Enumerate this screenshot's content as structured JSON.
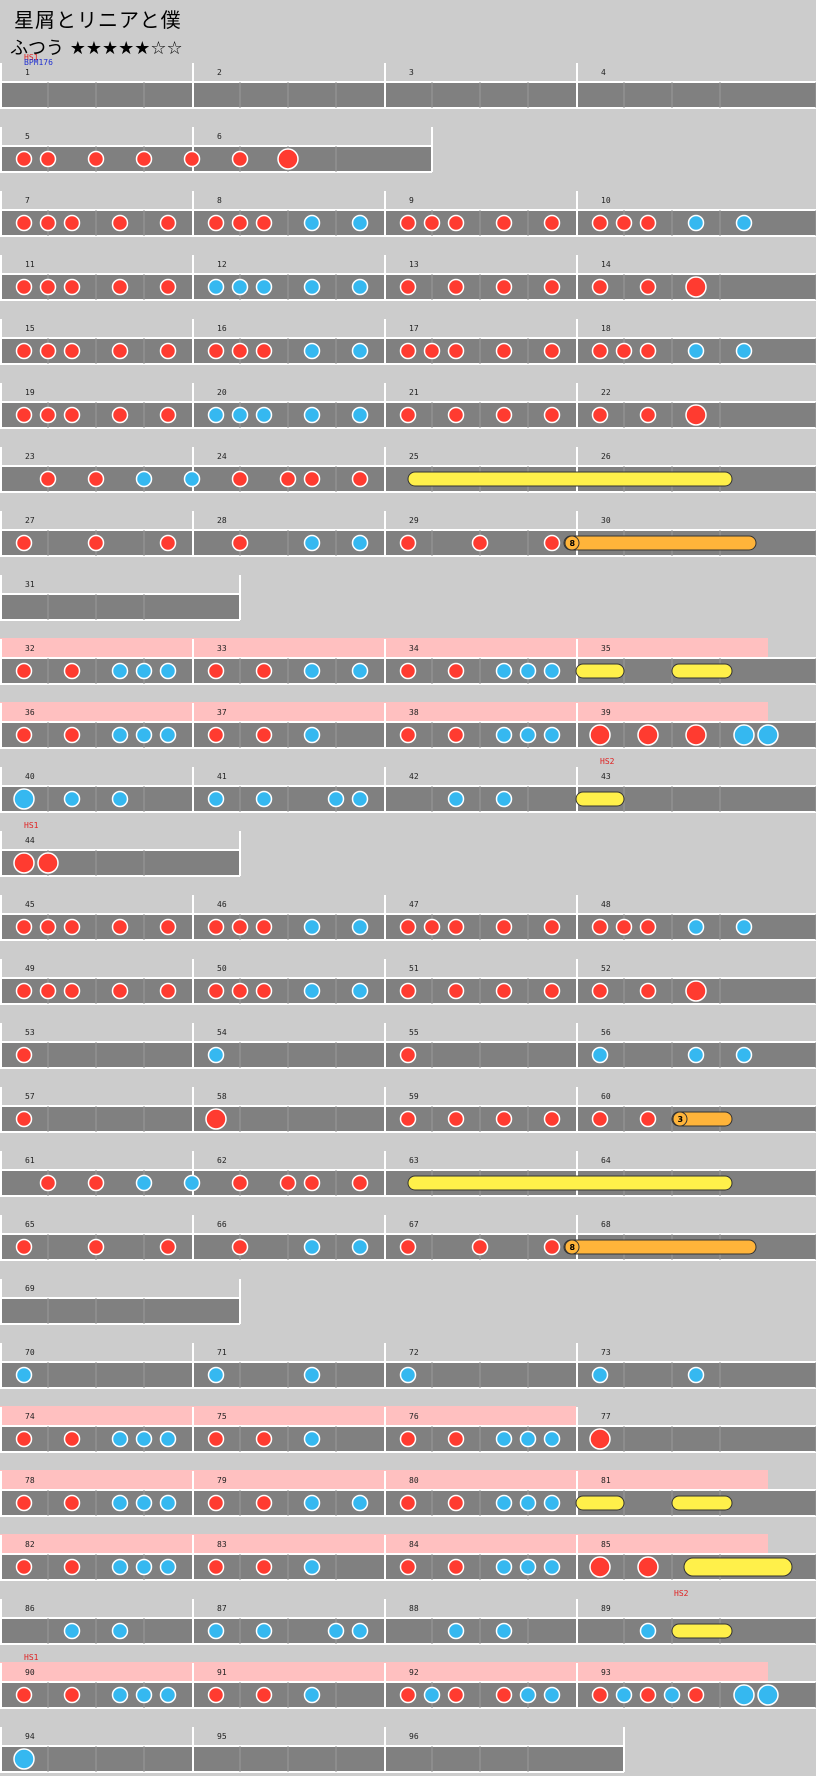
{
  "song": {
    "title": "星屑とリニアと僕",
    "difficulty_label": "ふつう",
    "stars": "★★★★★☆☆"
  },
  "colors": {
    "background": "#cccccc",
    "lane": "#808080",
    "lane_border": "#ffffff",
    "gogo": "#ffc0c0",
    "don": "#ff3b30",
    "ka": "#35b8f0",
    "drumroll": "#fff04a",
    "balloon": "#ffb43a",
    "hs": "#e02020",
    "bpm": "#2030d0"
  },
  "rows": [
    {
      "measures": [
        1,
        2,
        3,
        4
      ],
      "events": [
        {
          "m": 1,
          "text": "HS1",
          "type": "hs"
        },
        {
          "m": 1,
          "text": "BPM176",
          "type": "bpm"
        }
      ],
      "notes": []
    },
    {
      "measures": [
        5,
        6
      ],
      "notes": [
        [
          "d",
          0
        ],
        [
          "d",
          1
        ],
        [
          "d",
          3
        ],
        [
          "d",
          5
        ],
        [
          "d",
          7
        ],
        [
          "d",
          9
        ],
        [
          "D",
          11
        ]
      ]
    },
    {
      "measures": [
        7,
        8,
        9,
        10
      ],
      "notes": [
        [
          "d",
          0
        ],
        [
          "d",
          1
        ],
        [
          "d",
          2
        ],
        [
          "d",
          4
        ],
        [
          "d",
          6
        ],
        [
          "d",
          8
        ],
        [
          "d",
          9
        ],
        [
          "d",
          10
        ],
        [
          "k",
          12
        ],
        [
          "k",
          14
        ],
        [
          "d",
          16
        ],
        [
          "d",
          17
        ],
        [
          "d",
          18
        ],
        [
          "d",
          20
        ],
        [
          "d",
          22
        ],
        [
          "d",
          24
        ],
        [
          "d",
          25
        ],
        [
          "d",
          26
        ],
        [
          "k",
          28
        ],
        [
          "k",
          30
        ]
      ]
    },
    {
      "measures": [
        11,
        12,
        13,
        14
      ],
      "notes": [
        [
          "d",
          0
        ],
        [
          "d",
          1
        ],
        [
          "d",
          2
        ],
        [
          "d",
          4
        ],
        [
          "d",
          6
        ],
        [
          "k",
          8
        ],
        [
          "k",
          9
        ],
        [
          "k",
          10
        ],
        [
          "k",
          12
        ],
        [
          "k",
          14
        ],
        [
          "d",
          16
        ],
        [
          "d",
          18
        ],
        [
          "d",
          20
        ],
        [
          "d",
          22
        ],
        [
          "d",
          24
        ],
        [
          "d",
          26
        ],
        [
          "D",
          28
        ]
      ]
    },
    {
      "measures": [
        15,
        16,
        17,
        18
      ],
      "notes": [
        [
          "d",
          0
        ],
        [
          "d",
          1
        ],
        [
          "d",
          2
        ],
        [
          "d",
          4
        ],
        [
          "d",
          6
        ],
        [
          "d",
          8
        ],
        [
          "d",
          9
        ],
        [
          "d",
          10
        ],
        [
          "k",
          12
        ],
        [
          "k",
          14
        ],
        [
          "d",
          16
        ],
        [
          "d",
          17
        ],
        [
          "d",
          18
        ],
        [
          "d",
          20
        ],
        [
          "d",
          22
        ],
        [
          "d",
          24
        ],
        [
          "d",
          25
        ],
        [
          "d",
          26
        ],
        [
          "k",
          28
        ],
        [
          "k",
          30
        ]
      ]
    },
    {
      "measures": [
        19,
        20,
        21,
        22
      ],
      "notes": [
        [
          "d",
          0
        ],
        [
          "d",
          1
        ],
        [
          "d",
          2
        ],
        [
          "d",
          4
        ],
        [
          "d",
          6
        ],
        [
          "k",
          8
        ],
        [
          "k",
          9
        ],
        [
          "k",
          10
        ],
        [
          "k",
          12
        ],
        [
          "k",
          14
        ],
        [
          "d",
          16
        ],
        [
          "d",
          18
        ],
        [
          "d",
          20
        ],
        [
          "d",
          22
        ],
        [
          "d",
          24
        ],
        [
          "d",
          26
        ],
        [
          "D",
          28
        ]
      ]
    },
    {
      "measures": [
        23,
        24,
        25,
        26
      ],
      "notes": [
        [
          "d",
          1
        ],
        [
          "d",
          3
        ],
        [
          "k",
          5
        ],
        [
          "k",
          7
        ],
        [
          "d",
          9
        ],
        [
          "d",
          11
        ],
        [
          "d",
          12
        ],
        [
          "d",
          14
        ]
      ],
      "rolls": [
        {
          "type": "roll",
          "start": 17,
          "end": 30.5
        }
      ]
    },
    {
      "measures": [
        27,
        28,
        29,
        30
      ],
      "notes": [
        [
          "d",
          0
        ],
        [
          "d",
          3
        ],
        [
          "d",
          6
        ],
        [
          "d",
          9
        ],
        [
          "k",
          12
        ],
        [
          "k",
          14
        ],
        [
          "d",
          16
        ],
        [
          "d",
          19
        ],
        [
          "d",
          22
        ]
      ],
      "rolls": [
        {
          "type": "balloon",
          "start": 23.5,
          "end": 31.5,
          "count": "8"
        }
      ]
    },
    {
      "measures": [
        31
      ],
      "notes": []
    },
    {
      "measures": [
        32,
        33,
        34,
        35
      ],
      "gogo": [
        0,
        32
      ],
      "notes": [
        [
          "d",
          0
        ],
        [
          "d",
          2
        ],
        [
          "k",
          4
        ],
        [
          "k",
          5
        ],
        [
          "k",
          6
        ],
        [
          "d",
          8
        ],
        [
          "d",
          10
        ],
        [
          "k",
          12
        ],
        [
          "k",
          14
        ],
        [
          "d",
          16
        ],
        [
          "d",
          18
        ],
        [
          "k",
          20
        ],
        [
          "k",
          21
        ],
        [
          "k",
          22
        ]
      ],
      "rolls": [
        {
          "type": "roll",
          "start": 24,
          "end": 26
        },
        {
          "type": "roll",
          "start": 28,
          "end": 30.5
        }
      ]
    },
    {
      "measures": [
        36,
        37,
        38,
        39
      ],
      "gogo": [
        0,
        32
      ],
      "notes": [
        [
          "d",
          0
        ],
        [
          "d",
          2
        ],
        [
          "k",
          4
        ],
        [
          "k",
          5
        ],
        [
          "k",
          6
        ],
        [
          "d",
          8
        ],
        [
          "d",
          10
        ],
        [
          "k",
          12
        ],
        [
          "d",
          16
        ],
        [
          "d",
          18
        ],
        [
          "k",
          20
        ],
        [
          "k",
          21
        ],
        [
          "k",
          22
        ],
        [
          "D",
          24
        ],
        [
          "D",
          26
        ],
        [
          "D",
          28
        ],
        [
          "K",
          30
        ],
        [
          "K",
          31
        ]
      ]
    },
    {
      "measures": [
        40,
        41,
        42,
        43
      ],
      "events": [
        {
          "m": 43,
          "text": "HS2",
          "type": "hs"
        }
      ],
      "notes": [
        [
          "K",
          0
        ],
        [
          "k",
          2
        ],
        [
          "k",
          4
        ],
        [
          "k",
          8
        ],
        [
          "k",
          10
        ],
        [
          "k",
          13
        ],
        [
          "k",
          14
        ],
        [
          "k",
          18
        ],
        [
          "k",
          20
        ]
      ],
      "rolls": [
        {
          "type": "roll",
          "start": 24,
          "end": 26
        }
      ]
    },
    {
      "measures": [
        44
      ],
      "events": [
        {
          "m": 44,
          "text": "HS1",
          "type": "hs"
        }
      ],
      "notes": [
        [
          "D",
          0
        ],
        [
          "D",
          1
        ]
      ]
    },
    {
      "measures": [
        45,
        46,
        47,
        48
      ],
      "notes": [
        [
          "d",
          0
        ],
        [
          "d",
          1
        ],
        [
          "d",
          2
        ],
        [
          "d",
          4
        ],
        [
          "d",
          6
        ],
        [
          "d",
          8
        ],
        [
          "d",
          9
        ],
        [
          "d",
          10
        ],
        [
          "k",
          12
        ],
        [
          "k",
          14
        ],
        [
          "d",
          16
        ],
        [
          "d",
          17
        ],
        [
          "d",
          18
        ],
        [
          "d",
          20
        ],
        [
          "d",
          22
        ],
        [
          "d",
          24
        ],
        [
          "d",
          25
        ],
        [
          "d",
          26
        ],
        [
          "k",
          28
        ],
        [
          "k",
          30
        ]
      ]
    },
    {
      "measures": [
        49,
        50,
        51,
        52
      ],
      "notes": [
        [
          "d",
          0
        ],
        [
          "d",
          1
        ],
        [
          "d",
          2
        ],
        [
          "d",
          4
        ],
        [
          "d",
          6
        ],
        [
          "d",
          8
        ],
        [
          "d",
          9
        ],
        [
          "d",
          10
        ],
        [
          "k",
          12
        ],
        [
          "k",
          14
        ],
        [
          "d",
          16
        ],
        [
          "d",
          18
        ],
        [
          "d",
          20
        ],
        [
          "d",
          22
        ],
        [
          "d",
          24
        ],
        [
          "d",
          26
        ],
        [
          "D",
          28
        ]
      ]
    },
    {
      "measures": [
        53,
        54,
        55,
        56
      ],
      "notes": [
        [
          "d",
          0
        ],
        [
          "k",
          8
        ],
        [
          "d",
          16
        ],
        [
          "k",
          24
        ],
        [
          "k",
          28
        ],
        [
          "k",
          30
        ]
      ]
    },
    {
      "measures": [
        57,
        58,
        59,
        60
      ],
      "notes": [
        [
          "d",
          0
        ],
        [
          "D",
          8
        ],
        [
          "d",
          16
        ],
        [
          "d",
          18
        ],
        [
          "d",
          20
        ],
        [
          "d",
          22
        ],
        [
          "d",
          24
        ],
        [
          "d",
          26
        ]
      ],
      "rolls": [
        {
          "type": "balloon",
          "start": 28,
          "end": 30.5,
          "count": "3"
        }
      ]
    },
    {
      "measures": [
        61,
        62,
        63,
        64
      ],
      "notes": [
        [
          "d",
          1
        ],
        [
          "d",
          3
        ],
        [
          "k",
          5
        ],
        [
          "k",
          7
        ],
        [
          "d",
          9
        ],
        [
          "d",
          11
        ],
        [
          "d",
          12
        ],
        [
          "d",
          14
        ]
      ],
      "rolls": [
        {
          "type": "roll",
          "start": 17,
          "end": 30.5
        }
      ]
    },
    {
      "measures": [
        65,
        66,
        67,
        68
      ],
      "notes": [
        [
          "d",
          0
        ],
        [
          "d",
          3
        ],
        [
          "d",
          6
        ],
        [
          "d",
          9
        ],
        [
          "k",
          12
        ],
        [
          "k",
          14
        ],
        [
          "d",
          16
        ],
        [
          "d",
          19
        ],
        [
          "d",
          22
        ]
      ],
      "rolls": [
        {
          "type": "balloon",
          "start": 23.5,
          "end": 31.5,
          "count": "8"
        }
      ]
    },
    {
      "measures": [
        69
      ],
      "notes": []
    },
    {
      "measures": [
        70,
        71,
        72,
        73
      ],
      "notes": [
        [
          "k",
          0
        ],
        [
          "k",
          8
        ],
        [
          "k",
          12
        ],
        [
          "k",
          16
        ],
        [
          "k",
          24
        ],
        [
          "k",
          28
        ]
      ]
    },
    {
      "measures": [
        74,
        75,
        76,
        77
      ],
      "gogo": [
        0,
        24
      ],
      "notes": [
        [
          "d",
          0
        ],
        [
          "d",
          2
        ],
        [
          "k",
          4
        ],
        [
          "k",
          5
        ],
        [
          "k",
          6
        ],
        [
          "d",
          8
        ],
        [
          "d",
          10
        ],
        [
          "k",
          12
        ],
        [
          "d",
          16
        ],
        [
          "d",
          18
        ],
        [
          "k",
          20
        ],
        [
          "k",
          21
        ],
        [
          "k",
          22
        ],
        [
          "D",
          24
        ]
      ]
    },
    {
      "measures": [
        78,
        79,
        80,
        81
      ],
      "gogo": [
        0,
        32
      ],
      "notes": [
        [
          "d",
          0
        ],
        [
          "d",
          2
        ],
        [
          "k",
          4
        ],
        [
          "k",
          5
        ],
        [
          "k",
          6
        ],
        [
          "d",
          8
        ],
        [
          "d",
          10
        ],
        [
          "k",
          12
        ],
        [
          "k",
          14
        ],
        [
          "d",
          16
        ],
        [
          "d",
          18
        ],
        [
          "k",
          20
        ],
        [
          "k",
          21
        ],
        [
          "k",
          22
        ]
      ],
      "rolls": [
        {
          "type": "roll",
          "start": 24,
          "end": 26
        },
        {
          "type": "roll",
          "start": 28,
          "end": 30.5
        }
      ]
    },
    {
      "measures": [
        82,
        83,
        84,
        85
      ],
      "gogo": [
        0,
        32
      ],
      "notes": [
        [
          "d",
          0
        ],
        [
          "d",
          2
        ],
        [
          "k",
          4
        ],
        [
          "k",
          5
        ],
        [
          "k",
          6
        ],
        [
          "d",
          8
        ],
        [
          "d",
          10
        ],
        [
          "k",
          12
        ],
        [
          "d",
          16
        ],
        [
          "d",
          18
        ],
        [
          "k",
          20
        ],
        [
          "k",
          21
        ],
        [
          "k",
          22
        ],
        [
          "D",
          24
        ],
        [
          "D",
          26
        ]
      ],
      "rolls": [
        {
          "type": "bigroll",
          "start": 28.5,
          "end": 33
        }
      ]
    },
    {
      "measures": [
        86,
        87,
        88,
        89
      ],
      "events": [
        {
          "m": 89,
          "text": "HS2",
          "type": "hs",
          "beat": 28
        }
      ],
      "notes": [
        [
          "k",
          2
        ],
        [
          "k",
          4
        ],
        [
          "k",
          8
        ],
        [
          "k",
          10
        ],
        [
          "k",
          13
        ],
        [
          "k",
          14
        ],
        [
          "k",
          18
        ],
        [
          "k",
          20
        ],
        [
          "k",
          26
        ]
      ],
      "rolls": [
        {
          "type": "roll",
          "start": 28,
          "end": 30.5
        }
      ]
    },
    {
      "measures": [
        90,
        91,
        92,
        93
      ],
      "gogo": [
        0,
        32
      ],
      "events": [
        {
          "m": 90,
          "text": "HS1",
          "type": "hs"
        }
      ],
      "notes": [
        [
          "d",
          0
        ],
        [
          "d",
          2
        ],
        [
          "k",
          4
        ],
        [
          "k",
          5
        ],
        [
          "k",
          6
        ],
        [
          "d",
          8
        ],
        [
          "d",
          10
        ],
        [
          "k",
          12
        ],
        [
          "d",
          16
        ],
        [
          "k",
          17
        ],
        [
          "d",
          18
        ],
        [
          "d",
          20
        ],
        [
          "k",
          21
        ],
        [
          "k",
          22
        ],
        [
          "d",
          24
        ],
        [
          "k",
          25
        ],
        [
          "d",
          26
        ],
        [
          "k",
          27
        ],
        [
          "d",
          28
        ],
        [
          "K",
          30
        ],
        [
          "K",
          31
        ]
      ]
    },
    {
      "measures": [
        94,
        95,
        96
      ],
      "notes": [
        [
          "K",
          0
        ]
      ]
    }
  ]
}
